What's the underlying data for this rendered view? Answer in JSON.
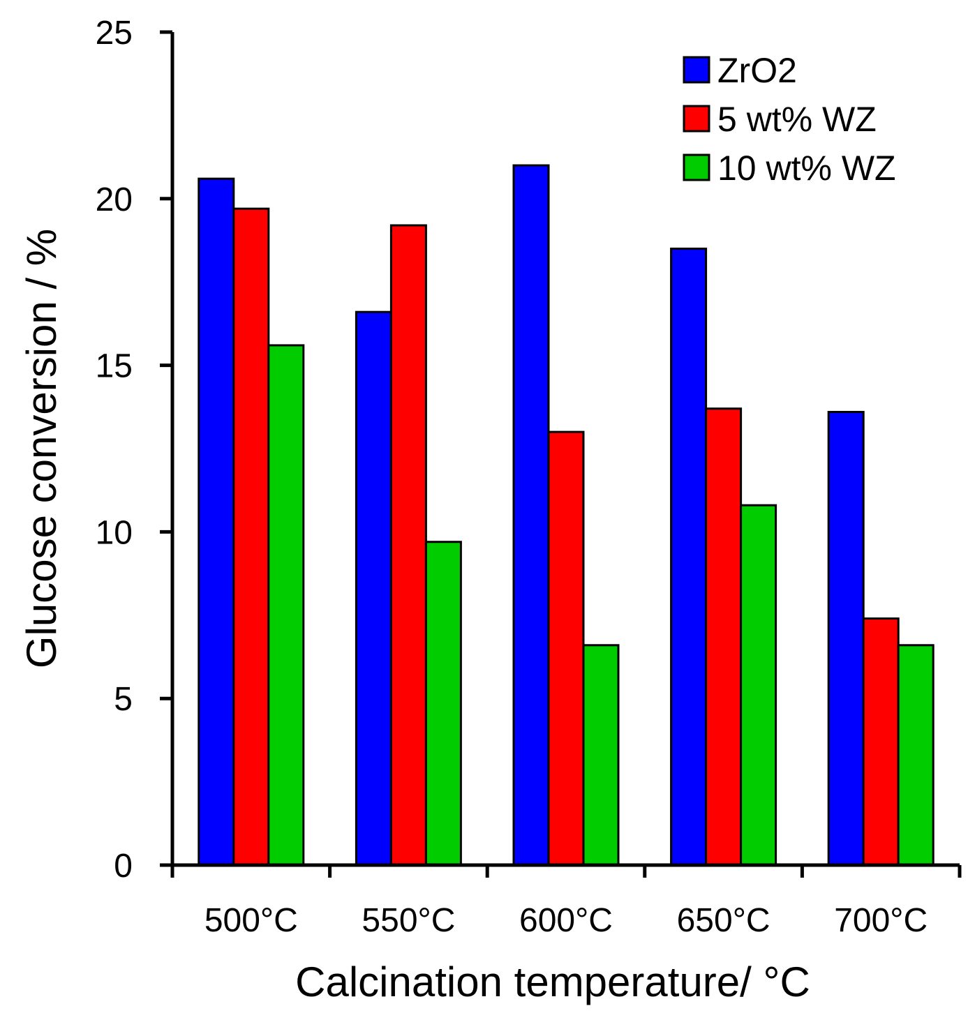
{
  "chart_data": {
    "type": "bar",
    "title": "",
    "xlabel": "Calcination temperature/ °C",
    "ylabel": "Glucose conversion / %",
    "categories": [
      "500°C",
      "550°C",
      "600°C",
      "650°C",
      "700°C"
    ],
    "series": [
      {
        "name": "ZrO2",
        "color": "#0000ff",
        "values": [
          20.6,
          16.6,
          21.0,
          18.5,
          13.6
        ]
      },
      {
        "name": "5 wt% WZ",
        "color": "#ff0000",
        "values": [
          19.7,
          19.2,
          13.0,
          13.7,
          7.4
        ]
      },
      {
        "name": "10 wt% WZ",
        "color": "#00cc00",
        "values": [
          15.6,
          9.7,
          6.6,
          10.8,
          6.6
        ]
      }
    ],
    "ylim": [
      0,
      25
    ],
    "yticks": [
      0,
      5,
      10,
      15,
      20,
      25
    ],
    "grid": false,
    "legend_position": "top-right"
  }
}
